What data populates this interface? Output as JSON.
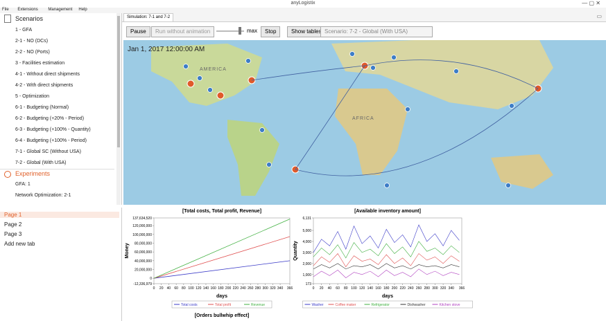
{
  "window": {
    "title": "anyLogistix"
  },
  "menu": [
    "File",
    "Extensions",
    "Management",
    "Help"
  ],
  "scenarios": {
    "title": "Scenarios",
    "items": [
      "1 - GFA",
      "2-1 - NO (DCs)",
      "2-2 - NO (Ports)",
      "3 - Facilities estimation",
      "4-1 - Without direct shipments",
      "4-2 - With direct shipments",
      "5 - Optimization",
      "6-1 - Budgeting (Normal)",
      "6-2 - Budgeting (+20% - Period)",
      "6-3 - Budgeting (+100% - Quantity)",
      "6-4 - Budgeting (+100% - Period)",
      "7-1 - Global SC (Without USA)",
      "7-2 - Global (With USA)"
    ]
  },
  "experiments": {
    "title": "Experiments",
    "items": [
      "GFA: 1",
      "Network Optimization: 2-1"
    ]
  },
  "pages": {
    "items": [
      "Page 1",
      "Page 2",
      "Page 3",
      "Add new tab"
    ]
  },
  "simulation": {
    "tab": "Simulation: 7-1 and 7-2",
    "buttons": {
      "pause": "Pause",
      "run": "Run without animation",
      "speed": "max",
      "stop": "Stop",
      "tables": "Show tables"
    },
    "scenario": "Scenario: 7-2 - Global (With USA)",
    "timestamp": "Jan 1, 2017 12:00:00 AM",
    "map_labels": [
      "AMERICA",
      "AFRICA"
    ]
  },
  "chart_data": [
    {
      "type": "line",
      "title": "[Total costs, Total profit, Revenue]",
      "x_label": "days",
      "y_label": "Money",
      "x": [
        0,
        366
      ],
      "xlim": [
        0,
        366
      ],
      "xticks": [
        0,
        20,
        40,
        60,
        80,
        100,
        120,
        140,
        160,
        180,
        200,
        220,
        240,
        260,
        280,
        300,
        320,
        340,
        366
      ],
      "ylim": [
        -12336979,
        137634520
      ],
      "yticks": [
        {
          "value": 137634520,
          "label": "137,634,520"
        },
        {
          "value": 120000000,
          "label": "120,000,000"
        },
        {
          "value": 100000000,
          "label": "100,000,000"
        },
        {
          "value": 80000000,
          "label": "80,000,000"
        },
        {
          "value": 60000000,
          "label": "60,000,000"
        },
        {
          "value": 40000000,
          "label": "40,000,000"
        },
        {
          "value": 20000000,
          "label": "20,000,000"
        },
        0,
        {
          "value": -12336979,
          "label": "-12,336,979"
        }
      ],
      "series": [
        {
          "name": "Total costs",
          "color": "#3b3bc8",
          "values": [
            0,
            40000000
          ]
        },
        {
          "name": "Total profit",
          "color": "#e05050",
          "values": [
            0,
            95000000
          ]
        },
        {
          "name": "Revenue",
          "color": "#40b040",
          "values": [
            0,
            135000000
          ]
        }
      ]
    },
    {
      "type": "line",
      "title": "[Available inventory amount]",
      "x_label": "days",
      "y_label": "Quantity",
      "x": [
        0,
        20,
        40,
        60,
        80,
        100,
        120,
        140,
        160,
        180,
        200,
        220,
        240,
        260,
        280,
        300,
        320,
        340,
        360
      ],
      "xlim": [
        0,
        366
      ],
      "xticks": [
        0,
        20,
        40,
        60,
        80,
        100,
        120,
        140,
        160,
        180,
        200,
        220,
        240,
        260,
        280,
        300,
        320,
        340,
        366
      ],
      "ylim": [
        173,
        6131
      ],
      "yticks": [
        {
          "value": 6131,
          "label": "6,131"
        },
        {
          "value": 5000,
          "label": "5,000"
        },
        {
          "value": 4000,
          "label": "4,000"
        },
        {
          "value": 3000,
          "label": "3,000"
        },
        {
          "value": 2000,
          "label": "2,000"
        },
        {
          "value": 1000,
          "label": "1,000"
        },
        173
      ],
      "series": [
        {
          "name": "Washer",
          "color": "#3b3bc8",
          "values": [
            3000,
            4200,
            3600,
            4900,
            3300,
            5400,
            3800,
            4500,
            3400,
            5100,
            3900,
            4600,
            3500,
            5500,
            4000,
            4700,
            3600,
            5000,
            4100
          ]
        },
        {
          "name": "Coffee maker",
          "color": "#e05050",
          "values": [
            1800,
            2600,
            2100,
            2900,
            1700,
            2700,
            2200,
            2400,
            1900,
            2800,
            2000,
            2500,
            1800,
            2900,
            2300,
            2600,
            2000,
            2700,
            2200
          ]
        },
        {
          "name": "Refrigerator",
          "color": "#40b040",
          "values": [
            2600,
            3400,
            2800,
            3700,
            2500,
            3900,
            3000,
            3300,
            2700,
            3800,
            2900,
            3500,
            2600,
            4000,
            3100,
            3400,
            2800,
            3600,
            3000
          ]
        },
        {
          "name": "Dishwasher",
          "color": "#333333",
          "values": [
            1500,
            1900,
            1600,
            2000,
            1500,
            1800,
            1700,
            1900,
            1500,
            2000,
            1600,
            1800,
            1500,
            1900,
            1700,
            1800,
            1600,
            1900,
            1700
          ]
        },
        {
          "name": "Kitchen stove",
          "color": "#b040c0",
          "values": [
            800,
            1300,
            900,
            1400,
            700,
            1200,
            1000,
            1300,
            800,
            1400,
            900,
            1200,
            800,
            1500,
            1000,
            1300,
            900,
            1200,
            1000
          ]
        }
      ]
    }
  ],
  "next_chart_title": "[Orders bullwhip effect]"
}
